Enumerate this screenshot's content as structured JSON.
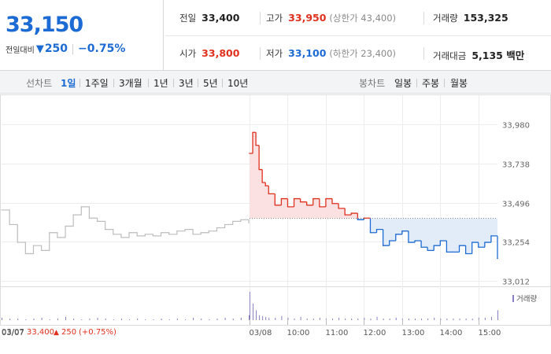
{
  "quote": {
    "price": "33,150",
    "change_label": "전일대비",
    "change_arrow": "▼",
    "change_amount": "250",
    "change_pct": "−0.75%"
  },
  "stats": {
    "prev_close": {
      "label": "전일",
      "value": "33,400"
    },
    "high": {
      "label": "고가",
      "value": "33,950",
      "sub": "(상한가 43,400)"
    },
    "volume": {
      "label": "거래량",
      "value": "153,325"
    },
    "open": {
      "label": "시가",
      "value": "33,800"
    },
    "low": {
      "label": "저가",
      "value": "33,100",
      "sub": "(하한가 23,400)"
    },
    "amount": {
      "label": "거래대금",
      "value": "5,135 백만"
    }
  },
  "period_bar": {
    "line_label": "선차트",
    "line_periods": [
      "1일",
      "1주일",
      "3개월",
      "1년",
      "3년",
      "5년",
      "10년"
    ],
    "active_period": "1일",
    "candle_label": "봉차트",
    "candle_periods": [
      "일봉",
      "주봉",
      "월봉"
    ]
  },
  "colors": {
    "up": "#e0301e",
    "down": "#1c6bd4",
    "prev_day_line": "#bdbdbd",
    "volume": "#8b7fc4",
    "up_fill": "#fbe1e1",
    "down_fill": "#e2ecf8"
  },
  "chart_data": {
    "type": "line",
    "y_ticks": [
      "33,980",
      "33,738",
      "33,496",
      "33,254",
      "33,012"
    ],
    "y_tick_values": [
      33980,
      33738,
      33496,
      33254,
      33012
    ],
    "ylim": [
      33012,
      33980
    ],
    "baseline": 33400,
    "x_ticks": [
      "03/07",
      "03/08",
      "10:00",
      "11:00",
      "12:00",
      "13:00",
      "14:00",
      "15:00"
    ],
    "prev_day_summary": {
      "date": "03/07",
      "close": "33,400",
      "arrow": "▲",
      "change": "250",
      "pct": "(+0.75%)"
    },
    "volume_label": "거래량",
    "prev_day": {
      "name": "03/07",
      "values": [
        33450,
        33360,
        33250,
        33180,
        33230,
        33200,
        33310,
        33280,
        33350,
        33420,
        33470,
        33400,
        33380,
        33330,
        33300,
        33280,
        33310,
        33290,
        33300,
        33290,
        33310,
        33300,
        33320,
        33330,
        33300,
        33310,
        33320,
        33340,
        33360,
        33380,
        33390,
        33370
      ]
    },
    "today": {
      "name": "03/08",
      "times": [
        "09:00",
        "09:05",
        "09:10",
        "09:15",
        "09:20",
        "09:25",
        "09:30",
        "09:40",
        "09:50",
        "10:00",
        "10:10",
        "10:20",
        "10:30",
        "10:40",
        "10:50",
        "11:00",
        "11:10",
        "11:20",
        "11:30",
        "11:40",
        "11:50",
        "12:00",
        "12:10",
        "12:20",
        "12:30",
        "12:40",
        "12:50",
        "13:00",
        "13:10",
        "13:20",
        "13:30",
        "13:40",
        "13:50",
        "14:00",
        "14:10",
        "14:20",
        "14:30",
        "14:40",
        "14:50",
        "15:00",
        "15:10",
        "15:20",
        "15:30"
      ],
      "values": [
        33800,
        33930,
        33850,
        33700,
        33620,
        33600,
        33550,
        33480,
        33520,
        33470,
        33520,
        33500,
        33480,
        33520,
        33470,
        33520,
        33490,
        33460,
        33420,
        33430,
        33390,
        33400,
        33310,
        33330,
        33230,
        33260,
        33300,
        33320,
        33250,
        33260,
        33220,
        33200,
        33230,
        33260,
        33190,
        33190,
        33230,
        33180,
        33250,
        33220,
        33250,
        33290,
        33150
      ]
    },
    "volume": {
      "prev_day": [
        3,
        2,
        2,
        1,
        2,
        3,
        1,
        2,
        4,
        2,
        1,
        2,
        3,
        2,
        1,
        2,
        1,
        2,
        1,
        1,
        2,
        1,
        2,
        1,
        3,
        2,
        1,
        2,
        3,
        2,
        3,
        6
      ],
      "today": [
        34,
        20,
        12,
        6,
        5,
        4,
        3,
        3,
        5,
        3,
        2,
        4,
        2,
        2,
        3,
        2,
        2,
        3,
        2,
        2,
        2,
        3,
        2,
        4,
        2,
        2,
        3,
        2,
        2,
        2,
        2,
        2,
        3,
        2,
        2,
        2,
        2,
        2,
        2,
        3,
        3,
        4,
        12
      ]
    }
  }
}
